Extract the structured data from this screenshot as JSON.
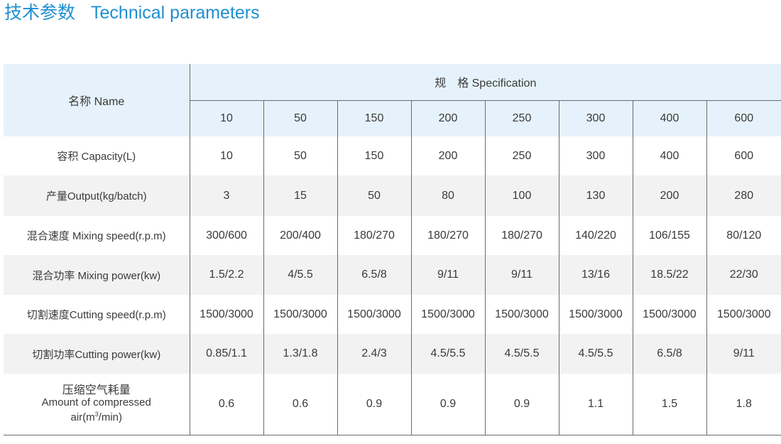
{
  "title": {
    "zh": "技术参数",
    "en": "Technical parameters"
  },
  "table": {
    "name_header": "名称 Name",
    "spec_header": "规　格  Specification",
    "spec_columns": [
      "10",
      "50",
      "150",
      "200",
      "250",
      "300",
      "400",
      "600"
    ],
    "rows": [
      {
        "label": "容积 Capacity(L)",
        "values": [
          "10",
          "50",
          "150",
          "200",
          "250",
          "300",
          "400",
          "600"
        ]
      },
      {
        "label": "产量Output(kg/batch)",
        "values": [
          "3",
          "15",
          "50",
          "80",
          "100",
          "130",
          "200",
          "280"
        ]
      },
      {
        "label": "混合速度 Mixing speed(r.p.m)",
        "values": [
          "300/600",
          "200/400",
          "180/270",
          "180/270",
          "180/270",
          "140/220",
          "106/155",
          "80/120"
        ]
      },
      {
        "label": "混合功率 Mixing power(kw)",
        "values": [
          "1.5/2.2",
          "4/5.5",
          "6.5/8",
          "9/11",
          "9/11",
          "13/16",
          "18.5/22",
          "22/30"
        ]
      },
      {
        "label": "切割速度Cutting speed(r.p.m)",
        "values": [
          "1500/3000",
          "1500/3000",
          "1500/3000",
          "1500/3000",
          "1500/3000",
          "1500/3000",
          "1500/3000",
          "1500/3000"
        ]
      },
      {
        "label": "切割功率Cutting power(kw)",
        "values": [
          "0.85/1.1",
          "1.3/1.8",
          "2.4/3",
          "4.5/5.5",
          "4.5/5.5",
          "4.5/5.5",
          "6.5/8",
          "9/11"
        ]
      }
    ],
    "air_row": {
      "label_zh": "压缩空气耗量",
      "label_en_1": "Amount of compressed",
      "label_en_2_prefix": "air(m",
      "label_en_2_sup": "3",
      "label_en_2_suffix": "/min)",
      "values": [
        "0.6",
        "0.6",
        "0.9",
        "0.9",
        "0.9",
        "1.1",
        "1.5",
        "1.8"
      ]
    }
  }
}
